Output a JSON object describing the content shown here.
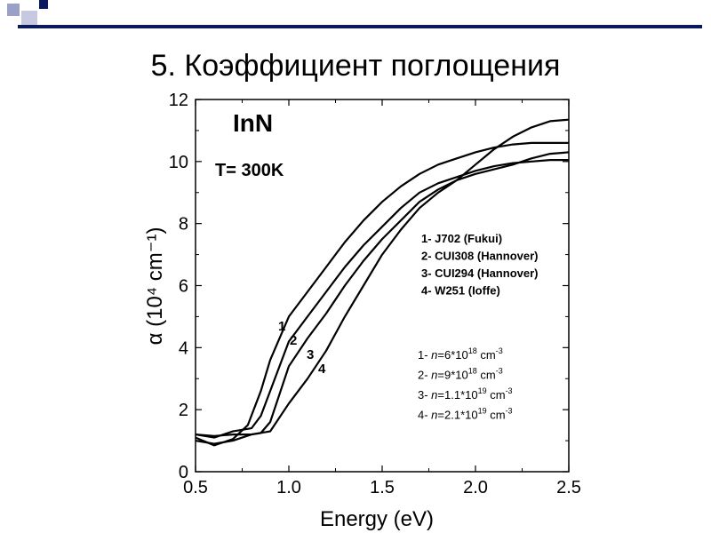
{
  "slide": {
    "title": "5. Коэффициент поглощения",
    "accent_colors": [
      "#0a1a5c",
      "#9aa0c8",
      "#c6c9df"
    ]
  },
  "chart_data": {
    "type": "line",
    "panel_label": "InN",
    "temperature_label": "T= 300K",
    "xlabel": "Energy (eV)",
    "ylabel": "α (10⁴ cm⁻¹)",
    "xlim": [
      0.5,
      2.5
    ],
    "ylim": [
      0,
      12
    ],
    "xticks": [
      "0.5",
      "1.0",
      "1.5",
      "2.0",
      "2.5"
    ],
    "yticks": [
      "0",
      "2",
      "4",
      "6",
      "8",
      "10",
      "12"
    ],
    "legend_samples": [
      "1- J702 (Fukui)",
      "2- CUI308 (Hannover)",
      "3- CUI294 (Hannover)",
      "4- W251 (Ioffe)"
    ],
    "legend_conc": [
      {
        "prefix": "1- ",
        "n": "n",
        "mid": "=6*10",
        "exp": "18",
        "unit": " cm",
        "unit_exp": "-3"
      },
      {
        "prefix": "2- ",
        "n": "n",
        "mid": "=9*10",
        "exp": "18",
        "unit": " cm",
        "unit_exp": "-3"
      },
      {
        "prefix": "3- ",
        "n": "n",
        "mid": "=1.1*10",
        "exp": "19",
        "unit": " cm",
        "unit_exp": "-3"
      },
      {
        "prefix": "4- ",
        "n": "n",
        "mid": "=2.1*10",
        "exp": "19",
        "unit": " cm",
        "unit_exp": "-3"
      }
    ],
    "series": [
      {
        "label": "1",
        "x": [
          0.5,
          0.6,
          0.7,
          0.78,
          0.85,
          0.9,
          1.0,
          1.1,
          1.2,
          1.3,
          1.4,
          1.5,
          1.6,
          1.7,
          1.8,
          1.9,
          2.0,
          2.1,
          2.2,
          2.3,
          2.4,
          2.5
        ],
        "y": [
          1.1,
          0.85,
          1.05,
          1.5,
          2.6,
          3.6,
          5.0,
          5.8,
          6.6,
          7.4,
          8.1,
          8.7,
          9.2,
          9.6,
          9.9,
          10.1,
          10.3,
          10.45,
          10.55,
          10.6,
          10.6,
          10.6
        ]
      },
      {
        "label": "2",
        "x": [
          0.5,
          0.6,
          0.7,
          0.8,
          0.85,
          0.9,
          1.0,
          1.1,
          1.2,
          1.3,
          1.4,
          1.5,
          1.6,
          1.7,
          1.8,
          1.9,
          2.0,
          2.1,
          2.2,
          2.3,
          2.4,
          2.5
        ],
        "y": [
          1.2,
          1.1,
          1.3,
          1.4,
          1.8,
          2.6,
          4.2,
          5.0,
          5.8,
          6.6,
          7.3,
          7.9,
          8.5,
          9.0,
          9.3,
          9.5,
          9.7,
          9.85,
          9.95,
          10.0,
          10.05,
          10.05
        ]
      },
      {
        "label": "3",
        "x": [
          0.5,
          0.6,
          0.7,
          0.8,
          0.85,
          0.9,
          1.0,
          1.1,
          1.2,
          1.3,
          1.4,
          1.5,
          1.6,
          1.7,
          1.8,
          1.9,
          2.0,
          2.1,
          2.2,
          2.3,
          2.4,
          2.5
        ],
        "y": [
          1.2,
          1.15,
          1.2,
          1.2,
          1.25,
          1.6,
          3.4,
          4.3,
          5.1,
          6.0,
          6.8,
          7.5,
          8.1,
          8.7,
          9.1,
          9.4,
          9.6,
          9.75,
          9.9,
          10.1,
          10.25,
          10.3
        ]
      },
      {
        "label": "4",
        "x": [
          0.5,
          0.6,
          0.7,
          0.8,
          0.9,
          1.0,
          1.1,
          1.2,
          1.3,
          1.4,
          1.5,
          1.6,
          1.7,
          1.8,
          1.9,
          2.0,
          2.1,
          2.2,
          2.3,
          2.4,
          2.5
        ],
        "y": [
          1.0,
          0.9,
          1.0,
          1.2,
          1.3,
          2.2,
          3.0,
          3.9,
          5.0,
          6.0,
          7.0,
          7.8,
          8.5,
          9.0,
          9.4,
          9.9,
          10.4,
          10.8,
          11.1,
          11.3,
          11.35
        ]
      }
    ]
  }
}
